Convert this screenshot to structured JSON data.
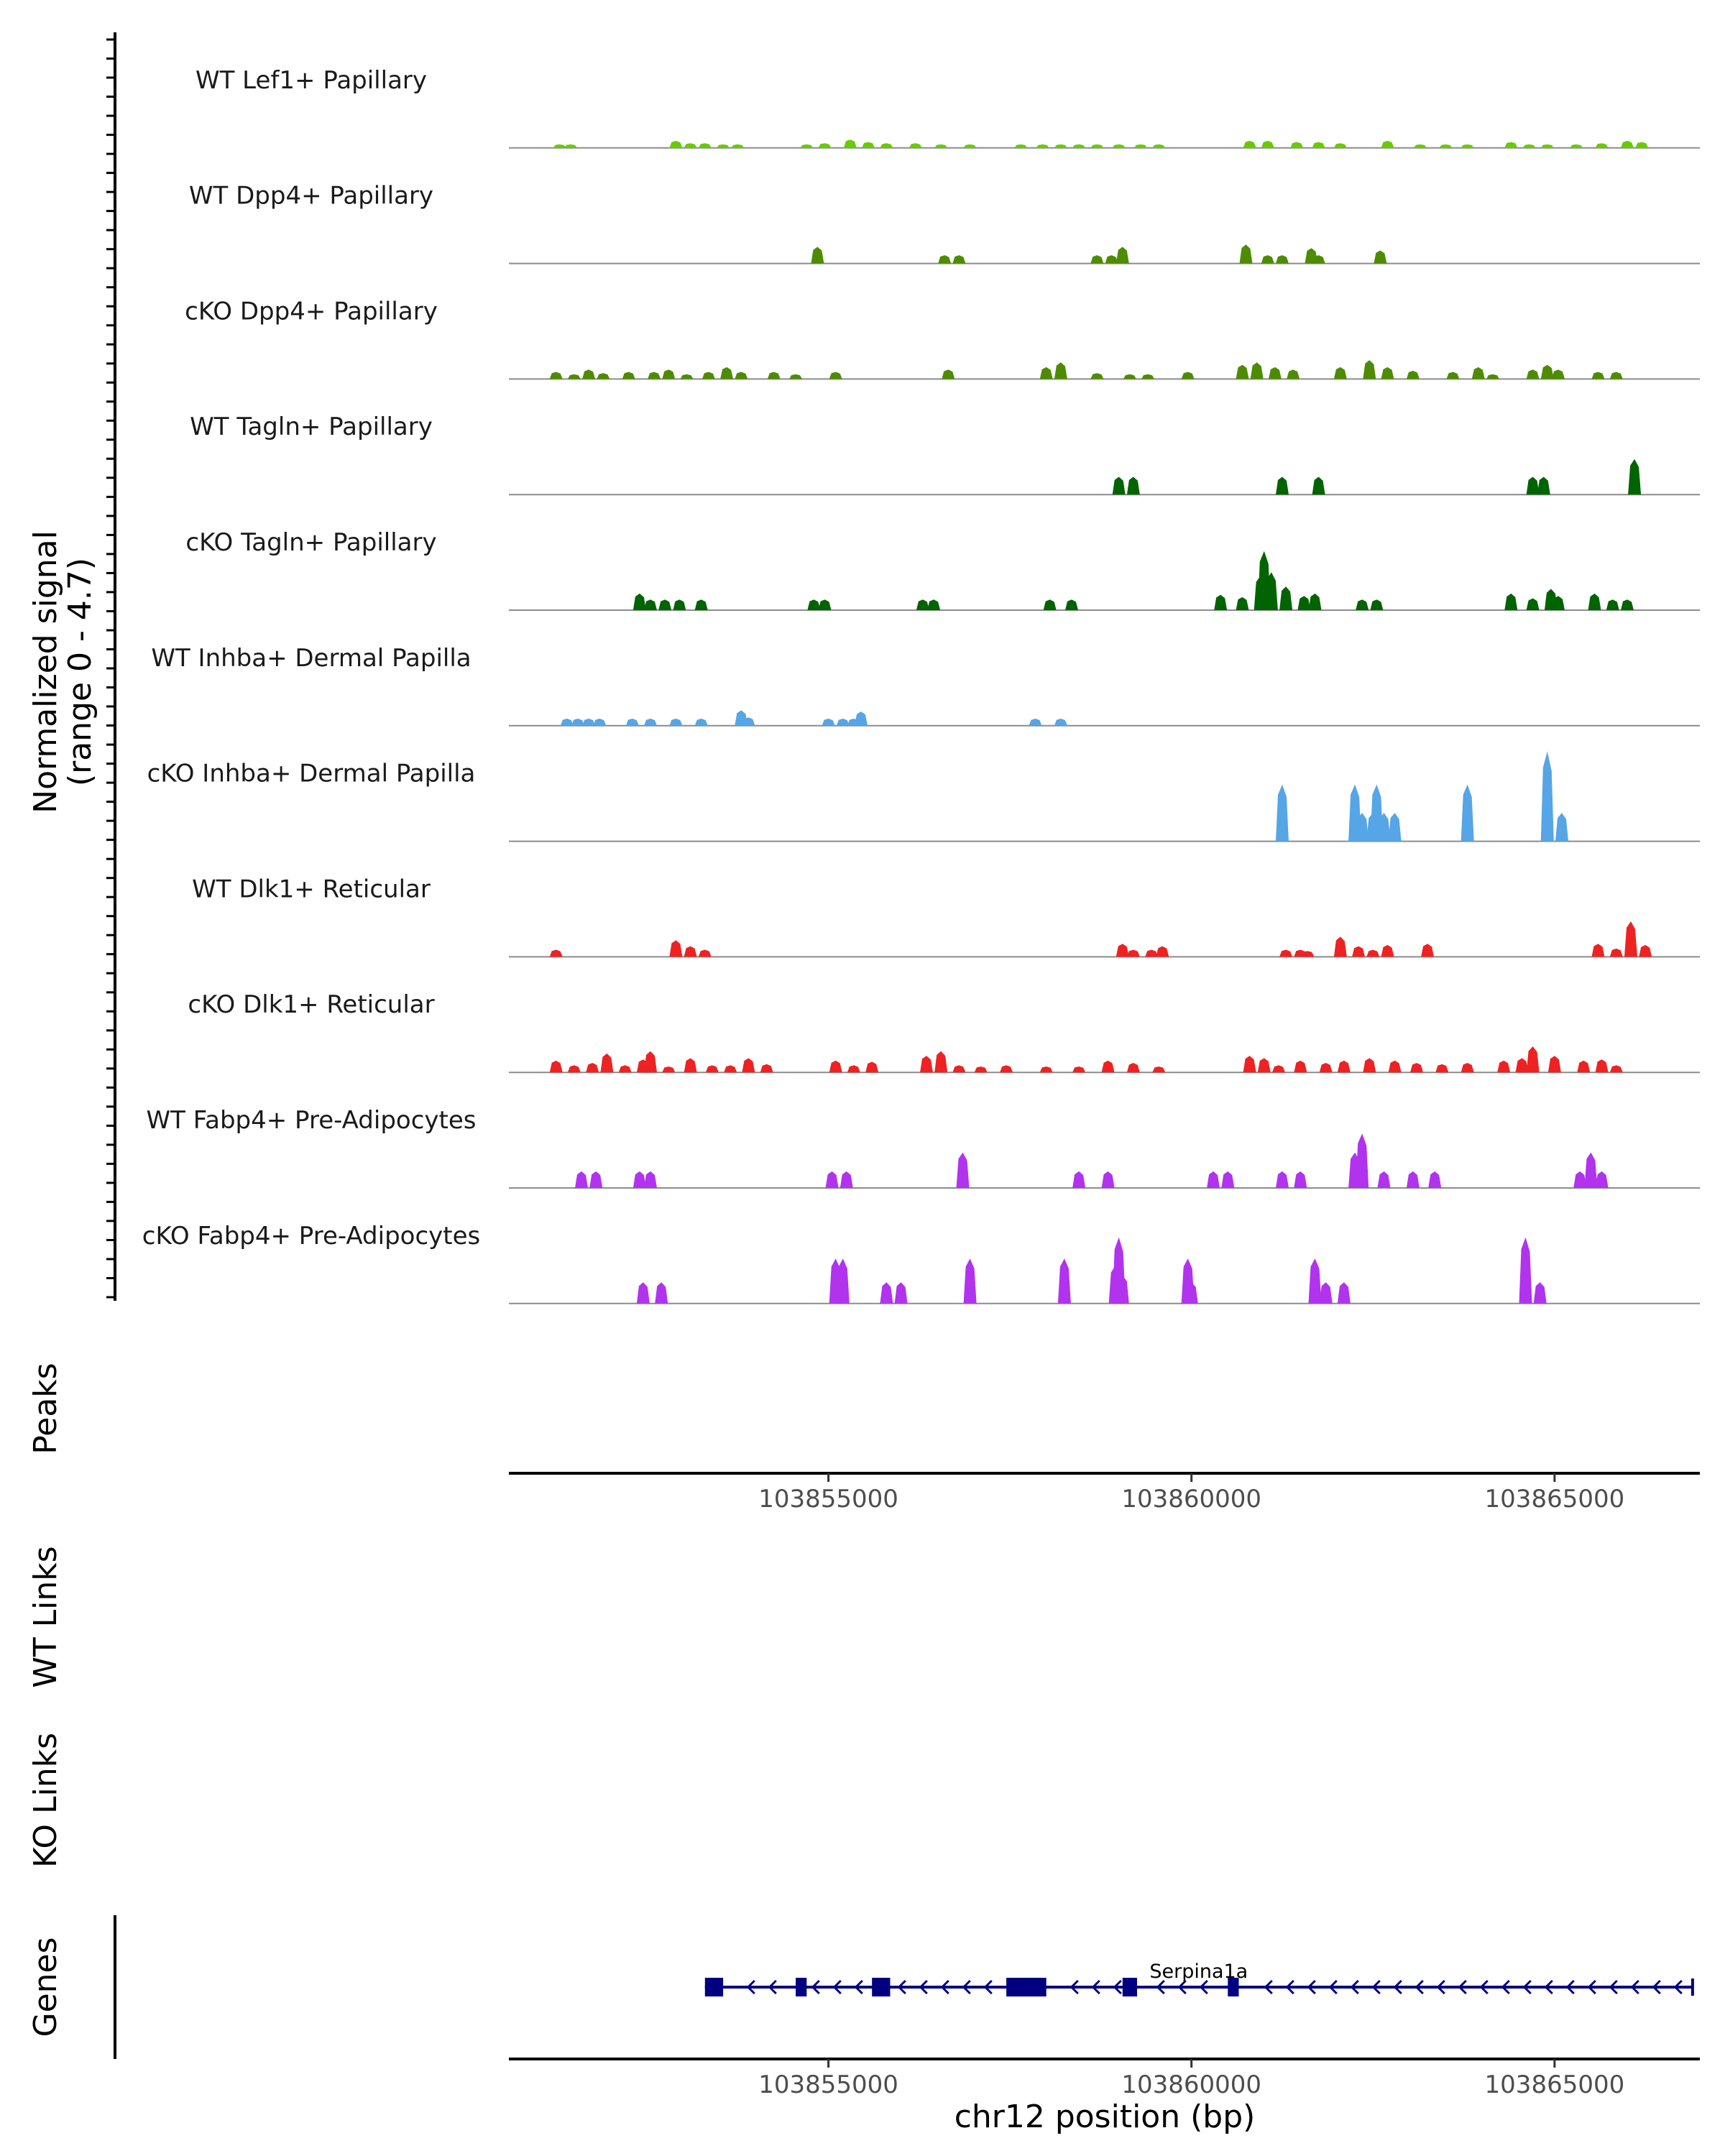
{
  "chart_data": {
    "type": "area",
    "title": "",
    "xlabel": "chr12 position (bp)",
    "ylabel_line1": "Normalized signal",
    "ylabel_line2": "(range 0 - 4.7)",
    "xlim": [
      103850600,
      103867000
    ],
    "ylim": [
      0,
      4.7
    ],
    "x_ticks": [
      103855000,
      103860000,
      103865000
    ],
    "x_tick_labels": [
      "103855000",
      "103860000",
      "103865000"
    ],
    "panel_labels": {
      "peaks": "Peaks",
      "wt_links": "WT Links",
      "ko_links": "KO Links",
      "genes": "Genes"
    },
    "series": [
      {
        "name": "WT Lef1+ Papillary",
        "color": "#66CC00",
        "points": [
          [
            103851300,
            0.15
          ],
          [
            103851450,
            0.15
          ],
          [
            103852900,
            0.3
          ],
          [
            103853100,
            0.2
          ],
          [
            103853300,
            0.2
          ],
          [
            103853550,
            0.15
          ],
          [
            103853750,
            0.15
          ],
          [
            103854700,
            0.15
          ],
          [
            103854950,
            0.2
          ],
          [
            103855300,
            0.35
          ],
          [
            103855550,
            0.25
          ],
          [
            103855800,
            0.2
          ],
          [
            103856200,
            0.2
          ],
          [
            103856550,
            0.15
          ],
          [
            103856950,
            0.15
          ],
          [
            103857650,
            0.15
          ],
          [
            103857950,
            0.15
          ],
          [
            103858200,
            0.15
          ],
          [
            103858450,
            0.15
          ],
          [
            103858700,
            0.15
          ],
          [
            103859000,
            0.15
          ],
          [
            103859300,
            0.15
          ],
          [
            103859550,
            0.15
          ],
          [
            103860800,
            0.3
          ],
          [
            103861050,
            0.3
          ],
          [
            103861450,
            0.25
          ],
          [
            103861750,
            0.25
          ],
          [
            103862050,
            0.2
          ],
          [
            103862700,
            0.3
          ],
          [
            103863150,
            0.15
          ],
          [
            103863500,
            0.15
          ],
          [
            103863800,
            0.15
          ],
          [
            103864400,
            0.25
          ],
          [
            103864650,
            0.15
          ],
          [
            103864900,
            0.15
          ],
          [
            103865300,
            0.15
          ],
          [
            103865650,
            0.2
          ],
          [
            103866000,
            0.3
          ],
          [
            103866200,
            0.25
          ]
        ]
      },
      {
        "name": "WT Dpp4+ Papillary",
        "color": "#4D8C00",
        "points": [
          [
            103854850,
            0.7
          ],
          [
            103856600,
            0.35
          ],
          [
            103856800,
            0.35
          ],
          [
            103858700,
            0.35
          ],
          [
            103858900,
            0.35
          ],
          [
            103859050,
            0.7
          ],
          [
            103860750,
            0.8
          ],
          [
            103861050,
            0.35
          ],
          [
            103861250,
            0.35
          ],
          [
            103861650,
            0.65
          ],
          [
            103861750,
            0.35
          ],
          [
            103862600,
            0.55
          ]
        ]
      },
      {
        "name": "cKO Dpp4+ Papillary",
        "color": "#4D8C00",
        "points": [
          [
            103851250,
            0.3
          ],
          [
            103851500,
            0.2
          ],
          [
            103851700,
            0.4
          ],
          [
            103851900,
            0.25
          ],
          [
            103852250,
            0.3
          ],
          [
            103852600,
            0.3
          ],
          [
            103852800,
            0.4
          ],
          [
            103853050,
            0.2
          ],
          [
            103853350,
            0.3
          ],
          [
            103853600,
            0.5
          ],
          [
            103853800,
            0.3
          ],
          [
            103854250,
            0.3
          ],
          [
            103854550,
            0.2
          ],
          [
            103855100,
            0.3
          ],
          [
            103856650,
            0.4
          ],
          [
            103858000,
            0.5
          ],
          [
            103858200,
            0.7
          ],
          [
            103858700,
            0.25
          ],
          [
            103859150,
            0.2
          ],
          [
            103859400,
            0.2
          ],
          [
            103859950,
            0.3
          ],
          [
            103860700,
            0.6
          ],
          [
            103860900,
            0.7
          ],
          [
            103861150,
            0.5
          ],
          [
            103861400,
            0.4
          ],
          [
            103862050,
            0.5
          ],
          [
            103862450,
            0.8
          ],
          [
            103862700,
            0.5
          ],
          [
            103863050,
            0.35
          ],
          [
            103863600,
            0.3
          ],
          [
            103863950,
            0.5
          ],
          [
            103864150,
            0.2
          ],
          [
            103864700,
            0.4
          ],
          [
            103864900,
            0.6
          ],
          [
            103865050,
            0.4
          ],
          [
            103865600,
            0.3
          ],
          [
            103865850,
            0.3
          ]
        ]
      },
      {
        "name": "WT Tagln+ Papillary",
        "color": "#006400",
        "points": [
          [
            103859000,
            0.75
          ],
          [
            103859200,
            0.75
          ],
          [
            103861250,
            0.75
          ],
          [
            103861750,
            0.75
          ],
          [
            103864700,
            0.75
          ],
          [
            103864850,
            0.75
          ],
          [
            103866100,
            1.5
          ]
        ]
      },
      {
        "name": "cKO Tagln+ Papillary",
        "color": "#006400",
        "points": [
          [
            103852400,
            0.7
          ],
          [
            103852550,
            0.45
          ],
          [
            103852750,
            0.45
          ],
          [
            103852950,
            0.45
          ],
          [
            103853250,
            0.45
          ],
          [
            103854800,
            0.45
          ],
          [
            103854950,
            0.45
          ],
          [
            103856300,
            0.45
          ],
          [
            103856450,
            0.45
          ],
          [
            103858050,
            0.45
          ],
          [
            103858350,
            0.45
          ],
          [
            103860400,
            0.65
          ],
          [
            103860700,
            0.55
          ],
          [
            103860950,
            1.45
          ],
          [
            103861000,
            2.5
          ],
          [
            103861100,
            1.6
          ],
          [
            103861300,
            1.0
          ],
          [
            103861550,
            0.6
          ],
          [
            103861700,
            0.7
          ],
          [
            103862350,
            0.45
          ],
          [
            103862550,
            0.45
          ],
          [
            103864400,
            0.7
          ],
          [
            103864700,
            0.5
          ],
          [
            103864950,
            0.9
          ],
          [
            103865050,
            0.6
          ],
          [
            103865550,
            0.7
          ],
          [
            103865800,
            0.45
          ],
          [
            103866000,
            0.45
          ]
        ]
      },
      {
        "name": "WT Inhba+ Dermal Papilla",
        "color": "#56A5E6",
        "points": [
          [
            103851400,
            0.3
          ],
          [
            103851550,
            0.3
          ],
          [
            103851700,
            0.3
          ],
          [
            103851850,
            0.3
          ],
          [
            103852300,
            0.3
          ],
          [
            103852550,
            0.3
          ],
          [
            103852900,
            0.3
          ],
          [
            103853250,
            0.3
          ],
          [
            103853800,
            0.65
          ],
          [
            103853900,
            0.35
          ],
          [
            103855000,
            0.3
          ],
          [
            103855200,
            0.3
          ],
          [
            103855350,
            0.3
          ],
          [
            103855450,
            0.6
          ],
          [
            103857850,
            0.3
          ],
          [
            103858200,
            0.3
          ]
        ]
      },
      {
        "name": "cKO Inhba+ Dermal Papilla",
        "color": "#56A5E6",
        "points": [
          [
            103861250,
            2.4
          ],
          [
            103862250,
            2.4
          ],
          [
            103862350,
            1.2
          ],
          [
            103862500,
            1.2
          ],
          [
            103862550,
            2.4
          ],
          [
            103862650,
            1.2
          ],
          [
            103862800,
            1.2
          ],
          [
            103863800,
            2.4
          ],
          [
            103864900,
            3.8
          ],
          [
            103865100,
            1.2
          ]
        ]
      },
      {
        "name": "WT Dlk1+ Reticular",
        "color": "#EE2222",
        "points": [
          [
            103851250,
            0.3
          ],
          [
            103852900,
            0.7
          ],
          [
            103853100,
            0.45
          ],
          [
            103853300,
            0.3
          ],
          [
            103859050,
            0.55
          ],
          [
            103859200,
            0.3
          ],
          [
            103859450,
            0.3
          ],
          [
            103859600,
            0.45
          ],
          [
            103861300,
            0.3
          ],
          [
            103861500,
            0.3
          ],
          [
            103861600,
            0.25
          ],
          [
            103862050,
            0.85
          ],
          [
            103862300,
            0.45
          ],
          [
            103862500,
            0.3
          ],
          [
            103862700,
            0.5
          ],
          [
            103863250,
            0.55
          ],
          [
            103865600,
            0.55
          ],
          [
            103865850,
            0.35
          ],
          [
            103866050,
            1.5
          ],
          [
            103866250,
            0.5
          ]
        ]
      },
      {
        "name": "cKO Dlk1+ Reticular",
        "color": "#EE2222",
        "points": [
          [
            103851250,
            0.5
          ],
          [
            103851500,
            0.3
          ],
          [
            103851750,
            0.4
          ],
          [
            103851950,
            0.8
          ],
          [
            103852200,
            0.3
          ],
          [
            103852450,
            0.55
          ],
          [
            103852550,
            0.9
          ],
          [
            103852800,
            0.25
          ],
          [
            103853100,
            0.6
          ],
          [
            103853400,
            0.3
          ],
          [
            103853650,
            0.3
          ],
          [
            103853900,
            0.6
          ],
          [
            103854150,
            0.35
          ],
          [
            103855100,
            0.5
          ],
          [
            103855350,
            0.3
          ],
          [
            103855600,
            0.45
          ],
          [
            103856350,
            0.7
          ],
          [
            103856550,
            0.9
          ],
          [
            103856800,
            0.3
          ],
          [
            103857100,
            0.25
          ],
          [
            103857450,
            0.3
          ],
          [
            103858000,
            0.25
          ],
          [
            103858450,
            0.25
          ],
          [
            103858850,
            0.5
          ],
          [
            103859200,
            0.4
          ],
          [
            103859550,
            0.25
          ],
          [
            103860800,
            0.7
          ],
          [
            103861000,
            0.6
          ],
          [
            103861200,
            0.3
          ],
          [
            103861500,
            0.5
          ],
          [
            103861850,
            0.4
          ],
          [
            103862100,
            0.5
          ],
          [
            103862450,
            0.6
          ],
          [
            103862800,
            0.5
          ],
          [
            103863100,
            0.4
          ],
          [
            103863450,
            0.35
          ],
          [
            103863800,
            0.4
          ],
          [
            103864300,
            0.5
          ],
          [
            103864550,
            0.6
          ],
          [
            103864700,
            1.1
          ],
          [
            103865000,
            0.7
          ],
          [
            103865400,
            0.5
          ],
          [
            103865650,
            0.55
          ],
          [
            103865850,
            0.3
          ]
        ]
      },
      {
        "name": "WT Fabp4+ Pre-Adipocytes",
        "color": "#B133EE",
        "points": [
          [
            103851600,
            0.7
          ],
          [
            103851800,
            0.7
          ],
          [
            103852400,
            0.7
          ],
          [
            103852550,
            0.7
          ],
          [
            103855050,
            0.7
          ],
          [
            103855250,
            0.7
          ],
          [
            103856850,
            1.5
          ],
          [
            103858450,
            0.7
          ],
          [
            103858850,
            0.7
          ],
          [
            103860300,
            0.7
          ],
          [
            103860500,
            0.7
          ],
          [
            103861250,
            0.7
          ],
          [
            103861500,
            0.7
          ],
          [
            103862250,
            1.5
          ],
          [
            103862350,
            2.3
          ],
          [
            103862650,
            0.7
          ],
          [
            103863050,
            0.7
          ],
          [
            103863350,
            0.7
          ],
          [
            103865350,
            0.7
          ],
          [
            103865500,
            1.5
          ],
          [
            103865650,
            0.7
          ]
        ]
      },
      {
        "name": "cKO Fabp4+ Pre-Adipocytes",
        "color": "#B133EE",
        "points": [
          [
            103852450,
            0.9
          ],
          [
            103852700,
            0.9
          ],
          [
            103855100,
            1.9
          ],
          [
            103855200,
            1.9
          ],
          [
            103855800,
            0.9
          ],
          [
            103856000,
            0.9
          ],
          [
            103856950,
            1.9
          ],
          [
            103858250,
            1.9
          ],
          [
            103858950,
            1.6
          ],
          [
            103859000,
            2.8
          ],
          [
            103859050,
            1.2
          ],
          [
            103859950,
            1.9
          ],
          [
            103860000,
            0.9
          ],
          [
            103861700,
            1.9
          ],
          [
            103861850,
            0.9
          ],
          [
            103862100,
            0.9
          ],
          [
            103864600,
            2.8
          ],
          [
            103864800,
            0.9
          ]
        ]
      }
    ],
    "peaks": [],
    "wt_links": [],
    "ko_links": [],
    "gene": {
      "name": "Serpina1a",
      "strand": "-",
      "start": 103853300,
      "end": 103866900,
      "exons": [
        [
          103853300,
          103853550
        ],
        [
          103854550,
          103854700
        ],
        [
          103855600,
          103855850
        ],
        [
          103857450,
          103858000
        ],
        [
          103859050,
          103859250
        ],
        [
          103860500,
          103860650
        ]
      ]
    }
  }
}
